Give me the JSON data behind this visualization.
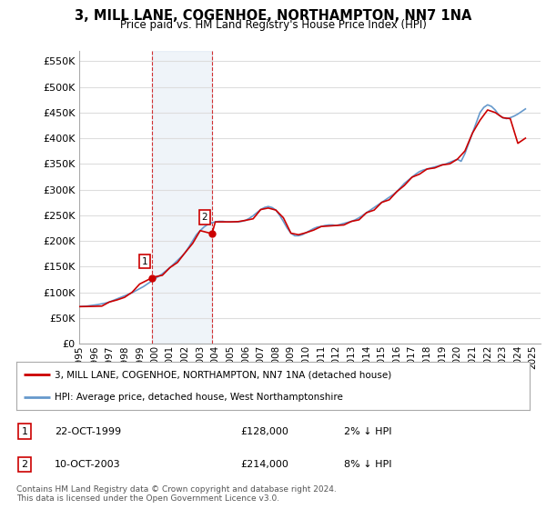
{
  "title": "3, MILL LANE, COGENHOE, NORTHAMPTON, NN7 1NA",
  "subtitle": "Price paid vs. HM Land Registry's House Price Index (HPI)",
  "ylim": [
    0,
    570000
  ],
  "yticks": [
    0,
    50000,
    100000,
    150000,
    200000,
    250000,
    300000,
    350000,
    400000,
    450000,
    500000,
    550000
  ],
  "xlim_start": 1995.0,
  "xlim_end": 2025.5,
  "purchases": [
    {
      "label": "1",
      "date": "22-OCT-1999",
      "price": 128000,
      "note": "2% ↓ HPI",
      "x": 1999.81
    },
    {
      "label": "2",
      "date": "10-OCT-2003",
      "price": 214000,
      "note": "8% ↓ HPI",
      "x": 2003.78
    }
  ],
  "purchase_color": "#cc0000",
  "hpi_color": "#6699cc",
  "background_color": "#ffffff",
  "grid_color": "#dddddd",
  "legend_label_price": "3, MILL LANE, COGENHOE, NORTHAMPTON, NN7 1NA (detached house)",
  "legend_label_hpi": "HPI: Average price, detached house, West Northamptonshire",
  "footer": "Contains HM Land Registry data © Crown copyright and database right 2024.\nThis data is licensed under the Open Government Licence v3.0.",
  "xtick_years": [
    1995,
    1996,
    1997,
    1998,
    1999,
    2000,
    2001,
    2002,
    2003,
    2004,
    2005,
    2006,
    2007,
    2008,
    2009,
    2010,
    2011,
    2012,
    2013,
    2014,
    2015,
    2016,
    2017,
    2018,
    2019,
    2020,
    2021,
    2022,
    2023,
    2024,
    2025
  ],
  "hpi_data_x": [
    1995.0,
    1995.25,
    1995.5,
    1995.75,
    1996.0,
    1996.25,
    1996.5,
    1996.75,
    1997.0,
    1997.25,
    1997.5,
    1997.75,
    1998.0,
    1998.25,
    1998.5,
    1998.75,
    1999.0,
    1999.25,
    1999.5,
    1999.75,
    2000.0,
    2000.25,
    2000.5,
    2000.75,
    2001.0,
    2001.25,
    2001.5,
    2001.75,
    2002.0,
    2002.25,
    2002.5,
    2002.75,
    2003.0,
    2003.25,
    2003.5,
    2003.75,
    2004.0,
    2004.25,
    2004.5,
    2004.75,
    2005.0,
    2005.25,
    2005.5,
    2005.75,
    2006.0,
    2006.25,
    2006.5,
    2006.75,
    2007.0,
    2007.25,
    2007.5,
    2007.75,
    2008.0,
    2008.25,
    2008.5,
    2008.75,
    2009.0,
    2009.25,
    2009.5,
    2009.75,
    2010.0,
    2010.25,
    2010.5,
    2010.75,
    2011.0,
    2011.25,
    2011.5,
    2011.75,
    2012.0,
    2012.25,
    2012.5,
    2012.75,
    2013.0,
    2013.25,
    2013.5,
    2013.75,
    2014.0,
    2014.25,
    2014.5,
    2014.75,
    2015.0,
    2015.25,
    2015.5,
    2015.75,
    2016.0,
    2016.25,
    2016.5,
    2016.75,
    2017.0,
    2017.25,
    2017.5,
    2017.75,
    2018.0,
    2018.25,
    2018.5,
    2018.75,
    2019.0,
    2019.25,
    2019.5,
    2019.75,
    2020.0,
    2020.25,
    2020.5,
    2020.75,
    2021.0,
    2021.25,
    2021.5,
    2021.75,
    2022.0,
    2022.25,
    2022.5,
    2022.75,
    2023.0,
    2023.25,
    2023.5,
    2023.75,
    2024.0,
    2024.25,
    2024.5
  ],
  "hpi_data_y": [
    72000,
    72500,
    73000,
    74000,
    75000,
    76000,
    77500,
    79000,
    81000,
    84000,
    87000,
    90000,
    93000,
    96000,
    99000,
    103000,
    107000,
    111000,
    116000,
    121000,
    126000,
    131000,
    136000,
    142000,
    148000,
    155000,
    162000,
    169000,
    177000,
    188000,
    200000,
    212000,
    220000,
    227000,
    232000,
    235000,
    237000,
    238000,
    238000,
    237000,
    237000,
    237000,
    237000,
    238000,
    240000,
    244000,
    249000,
    255000,
    261000,
    265000,
    267000,
    265000,
    260000,
    250000,
    238000,
    225000,
    215000,
    210000,
    210000,
    212000,
    216000,
    220000,
    224000,
    227000,
    228000,
    230000,
    231000,
    231000,
    230000,
    232000,
    234000,
    236000,
    238000,
    241000,
    245000,
    250000,
    255000,
    260000,
    265000,
    270000,
    275000,
    280000,
    285000,
    290000,
    296000,
    304000,
    312000,
    318000,
    324000,
    330000,
    335000,
    338000,
    340000,
    342000,
    344000,
    346000,
    348000,
    350000,
    353000,
    356000,
    359000,
    355000,
    370000,
    390000,
    410000,
    430000,
    450000,
    460000,
    465000,
    462000,
    455000,
    445000,
    440000,
    438000,
    440000,
    443000,
    447000,
    452000,
    457000
  ],
  "price_line_x": [
    1995.0,
    1995.5,
    1996.0,
    1996.5,
    1997.0,
    1997.5,
    1998.0,
    1998.5,
    1999.0,
    1999.81,
    2000.0,
    2000.5,
    2001.0,
    2001.5,
    2002.0,
    2002.5,
    2003.0,
    2003.78,
    2004.0,
    2004.5,
    2005.0,
    2005.5,
    2006.0,
    2006.5,
    2007.0,
    2007.5,
    2008.0,
    2008.5,
    2009.0,
    2009.5,
    2010.0,
    2010.5,
    2011.0,
    2011.5,
    2012.0,
    2012.5,
    2013.0,
    2013.5,
    2014.0,
    2014.5,
    2015.0,
    2015.5,
    2016.0,
    2016.5,
    2017.0,
    2017.5,
    2018.0,
    2018.5,
    2019.0,
    2019.5,
    2020.0,
    2020.5,
    2021.0,
    2021.5,
    2022.0,
    2022.5,
    2023.0,
    2023.5,
    2024.0,
    2024.5
  ],
  "price_line_y": [
    72000,
    72200,
    72500,
    73000,
    81000,
    85000,
    90000,
    100000,
    116000,
    128000,
    130000,
    133000,
    148000,
    158000,
    177000,
    195000,
    220000,
    214000,
    237000,
    237000,
    237000,
    237500,
    240000,
    243000,
    261000,
    264000,
    260000,
    245000,
    215000,
    212000,
    216000,
    221000,
    228000,
    229000,
    230000,
    231000,
    238000,
    241000,
    255000,
    260000,
    275000,
    280000,
    296000,
    308000,
    324000,
    330000,
    340000,
    342000,
    348000,
    350000,
    359000,
    375000,
    410000,
    435000,
    455000,
    450000,
    440000,
    438000,
    390000,
    400000
  ]
}
